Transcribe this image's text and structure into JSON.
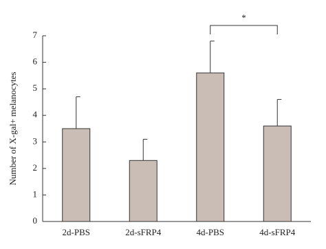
{
  "chart_data": {
    "type": "bar",
    "y_label": "Number of X-gal+ melanocytes",
    "categories": [
      "2d-PBS",
      "2d-sFRP4",
      "4d-PBS",
      "4d-sFRP4"
    ],
    "values": [
      3.5,
      2.3,
      5.6,
      3.6
    ],
    "errors": [
      1.2,
      0.8,
      1.2,
      1.0
    ],
    "color": "#c9bdb5",
    "ylim": [
      0,
      7
    ],
    "yticks": [
      0,
      1,
      2,
      3,
      4,
      5,
      6,
      7
    ],
    "significance": [
      {
        "label": "*",
        "between": [
          "4d-PBS",
          "4d-sFRP4"
        ]
      }
    ]
  }
}
